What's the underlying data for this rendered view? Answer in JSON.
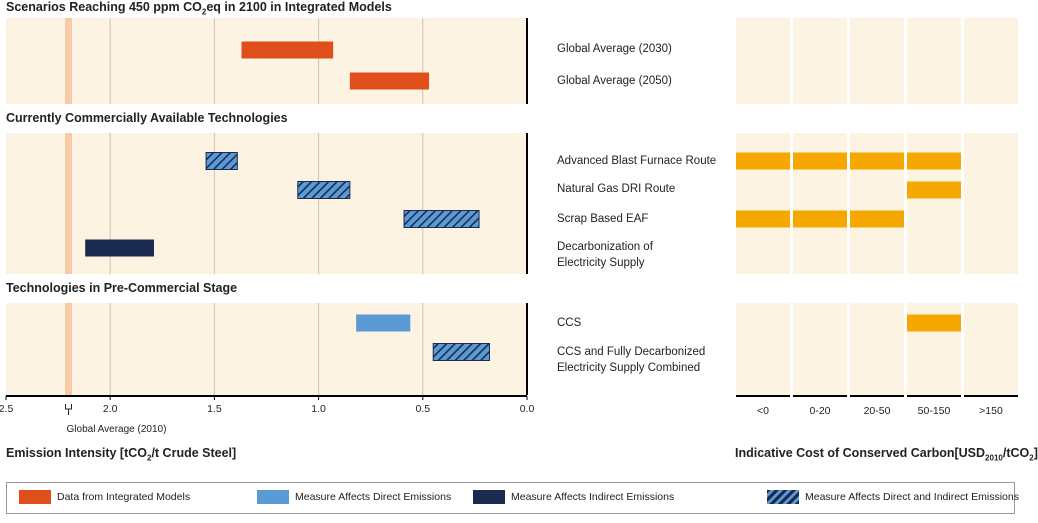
{
  "colors": {
    "panel_bg": "#fdf3e3",
    "integrated": "#e04e1b",
    "direct": "#5b9bd5",
    "indirect": "#1b2b4f",
    "hatch_bg": "#5b9bd5",
    "hatch_line": "#1b2b4f",
    "cost_bar": "#f5a800",
    "global_avg_band": "#f8c9a6",
    "grid": "#cfc3b3"
  },
  "sections": [
    {
      "title_pre": "Scenarios Reaching 450 ppm CO",
      "title_sub": "2",
      "title_post": "eq in 2100 in Integrated Models"
    },
    {
      "title_pre": "Currently Commercially Available Technologies",
      "title_sub": "",
      "title_post": ""
    },
    {
      "title_pre": "Technologies in Pre-Commercial Stage",
      "title_sub": "",
      "title_post": ""
    }
  ],
  "row_labels": [
    "Global Average (2030)",
    "Global Average (2050)",
    "Advanced Blast Furnace Route",
    "Natural Gas DRI Route",
    "Scrap Based EAF",
    "Decarbonization of\nElectricity Supply",
    "CCS",
    "CCS and Fully Decarbonized\nElectricity Supply Combined"
  ],
  "left_axis": {
    "title_pre": "Emission Intensity [tCO",
    "title_sub": "2",
    "title_post": "/t Crude Steel]",
    "global_avg_label": "Global Average (2010)"
  },
  "right_axis": {
    "title_pre": "Indicative Cost of Conserved Carbon[USD",
    "title_sub": "2010",
    "title_mid": "/tCO",
    "title_sub2": "2",
    "title_post": "]"
  },
  "legend": {
    "integrated": "Data from Integrated Models",
    "direct": "Measure Affects Direct Emissions",
    "indirect": "Measure Affects Indirect Emissions",
    "both": "Measure Affects Direct and Indirect Emissions"
  },
  "chart_data": [
    {
      "type": "bar",
      "subtype": "horizontal-range",
      "xlabel": "Emission Intensity [tCO2/t Crude Steel]",
      "xlim": [
        2.5,
        0.0
      ],
      "x_reversed": true,
      "xticks": [
        2.5,
        2.0,
        1.5,
        1.0,
        0.5,
        0.0
      ],
      "xtick_labels": [
        "2.5",
        "2.0",
        "1.5",
        "1.0",
        "0.5",
        "0.0"
      ],
      "grid": true,
      "reference_line": {
        "label": "Global Average (2010)",
        "x": 2.2
      },
      "series": [
        {
          "category": "Global Average (2030)",
          "from": 1.37,
          "to": 0.93,
          "kind": "integrated"
        },
        {
          "category": "Global Average (2050)",
          "from": 0.85,
          "to": 0.47,
          "kind": "integrated"
        },
        {
          "category": "Advanced Blast Furnace Route",
          "from": 1.54,
          "to": 1.39,
          "kind": "both"
        },
        {
          "category": "Natural Gas DRI Route",
          "from": 1.1,
          "to": 0.85,
          "kind": "both"
        },
        {
          "category": "Scrap Based EAF",
          "from": 0.59,
          "to": 0.23,
          "kind": "both"
        },
        {
          "category": "Decarbonization of Electricity Supply",
          "from": 2.12,
          "to": 1.79,
          "kind": "indirect"
        },
        {
          "category": "CCS",
          "from": 0.82,
          "to": 0.56,
          "kind": "direct"
        },
        {
          "category": "CCS and Fully Decarbonized Electricity Supply Combined",
          "from": 0.45,
          "to": 0.18,
          "kind": "both"
        }
      ]
    },
    {
      "type": "table",
      "title": "Indicative Cost of Conserved Carbon[USD2010/tCO2]",
      "columns": [
        "<0",
        "0-20",
        "20-50",
        "50-150",
        ">150"
      ],
      "rows": [
        {
          "label": "Global Average (2030)",
          "filled": []
        },
        {
          "label": "Global Average (2050)",
          "filled": []
        },
        {
          "label": "Advanced Blast Furnace Route",
          "filled": [
            "<0",
            "0-20",
            "20-50",
            "50-150"
          ]
        },
        {
          "label": "Natural Gas DRI Route",
          "filled": [
            "50-150"
          ]
        },
        {
          "label": "Scrap Based EAF",
          "filled": [
            "<0",
            "0-20",
            "20-50"
          ]
        },
        {
          "label": "Decarbonization of Electricity Supply",
          "filled": []
        },
        {
          "label": "CCS",
          "filled": [
            "50-150"
          ]
        },
        {
          "label": "CCS and Fully Decarbonized Electricity Supply Combined",
          "filled": []
        }
      ]
    }
  ]
}
